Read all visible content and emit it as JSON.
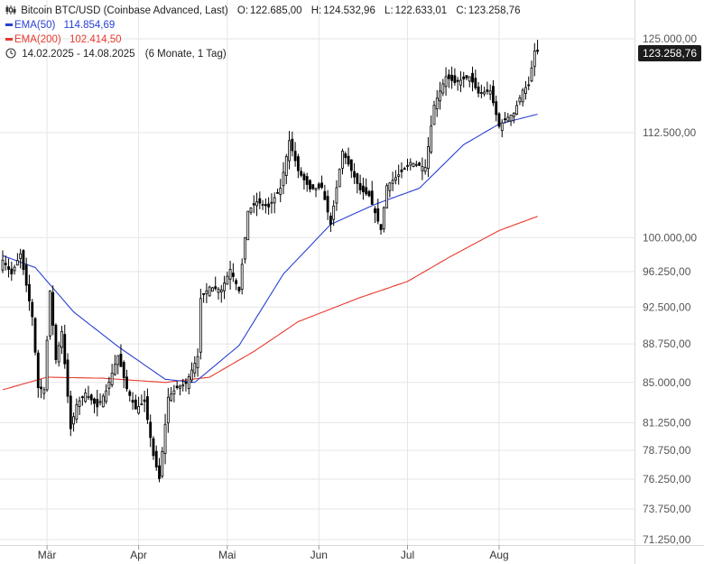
{
  "header": {
    "title": "Bitcoin BTC/USD (Coinbase Advanced, Last)",
    "open_label": "O:",
    "open": "122.685,00",
    "high_label": "H:",
    "high": "124.532,96",
    "low_label": "L:",
    "low": "122.633,01",
    "close_label": "C:",
    "close": "123.258,76",
    "ema50_label": "EMA(50)",
    "ema50_value": "114.854,69",
    "ema50_color": "#2940d3",
    "ema200_label": "EMA(200)",
    "ema200_value": "102.414,50",
    "ema200_color": "#e8392e",
    "range": "14.02.2025 - 14.08.2025",
    "period": "(6 Monate, 1 Tag)"
  },
  "last_price": "123.258,76",
  "chart_data": {
    "type": "candlestick",
    "y_axis": {
      "ticks": [
        125000,
        112500,
        100000,
        96250,
        92500,
        88750,
        85000,
        81250,
        78750,
        76250,
        73750,
        71250
      ],
      "tick_labels": [
        "125.000,00",
        "112.500,00",
        "100.000,00",
        "96.250,00",
        "92.500,00",
        "88.750,00",
        "85.000,00",
        "81.250,00",
        "78.750,00",
        "76.250,00",
        "73.750,00",
        "71.250,00"
      ],
      "scale": "log",
      "range": [
        70000,
        127000
      ]
    },
    "x_axis": {
      "start_date": "2025-02-14",
      "end_date": "2025-08-14",
      "month_ticks": [
        {
          "label": "Mär",
          "date": "2025-03-01"
        },
        {
          "label": "Apr",
          "date": "2025-04-01"
        },
        {
          "label": "Mai",
          "date": "2025-05-01"
        },
        {
          "label": "Jun",
          "date": "2025-06-01"
        },
        {
          "label": "Jul",
          "date": "2025-07-01"
        },
        {
          "label": "Aug",
          "date": "2025-08-01"
        }
      ]
    },
    "grid": true,
    "close_anchors": [
      [
        "2025-02-14",
        97500
      ],
      [
        "2025-02-17",
        96000
      ],
      [
        "2025-02-20",
        98200
      ],
      [
        "2025-02-24",
        91500
      ],
      [
        "2025-02-26",
        84500
      ],
      [
        "2025-02-28",
        84300
      ],
      [
        "2025-03-02",
        94200
      ],
      [
        "2025-03-04",
        87200
      ],
      [
        "2025-03-06",
        90000
      ],
      [
        "2025-03-09",
        80700
      ],
      [
        "2025-03-11",
        82900
      ],
      [
        "2025-03-14",
        84000
      ],
      [
        "2025-03-18",
        82700
      ],
      [
        "2025-03-21",
        84200
      ],
      [
        "2025-03-25",
        87600
      ],
      [
        "2025-03-28",
        84400
      ],
      [
        "2025-03-31",
        82500
      ],
      [
        "2025-04-03",
        83200
      ],
      [
        "2025-04-06",
        78300
      ],
      [
        "2025-04-08",
        76300
      ],
      [
        "2025-04-11",
        83600
      ],
      [
        "2025-04-14",
        84500
      ],
      [
        "2025-04-17",
        84900
      ],
      [
        "2025-04-21",
        87500
      ],
      [
        "2025-04-22",
        93400
      ],
      [
        "2025-04-25",
        94600
      ],
      [
        "2025-04-29",
        94300
      ],
      [
        "2025-05-02",
        96500
      ],
      [
        "2025-05-05",
        94200
      ],
      [
        "2025-05-08",
        103000
      ],
      [
        "2025-05-11",
        104100
      ],
      [
        "2025-05-15",
        103500
      ],
      [
        "2025-05-19",
        105700
      ],
      [
        "2025-05-22",
        111500
      ],
      [
        "2025-05-25",
        107800
      ],
      [
        "2025-05-29",
        105600
      ],
      [
        "2025-06-02",
        105800
      ],
      [
        "2025-06-05",
        101500
      ],
      [
        "2025-06-09",
        110200
      ],
      [
        "2025-06-11",
        108600
      ],
      [
        "2025-06-15",
        105500
      ],
      [
        "2025-06-18",
        104800
      ],
      [
        "2025-06-22",
        100900
      ],
      [
        "2025-06-24",
        106000
      ],
      [
        "2025-06-28",
        107300
      ],
      [
        "2025-07-02",
        108800
      ],
      [
        "2025-07-07",
        108200
      ],
      [
        "2025-07-10",
        116000
      ],
      [
        "2025-07-14",
        119800
      ],
      [
        "2025-07-17",
        119000
      ],
      [
        "2025-07-22",
        119800
      ],
      [
        "2025-07-25",
        117600
      ],
      [
        "2025-07-29",
        117900
      ],
      [
        "2025-08-01",
        113300
      ],
      [
        "2025-08-03",
        114200
      ],
      [
        "2025-08-06",
        115000
      ],
      [
        "2025-08-09",
        118000
      ],
      [
        "2025-08-11",
        118700
      ],
      [
        "2025-08-13",
        123300
      ],
      [
        "2025-08-14",
        123258.76
      ]
    ],
    "ema50": [
      [
        "2025-02-14",
        98000
      ],
      [
        "2025-02-25",
        96700
      ],
      [
        "2025-03-10",
        92000
      ],
      [
        "2025-03-25",
        88500
      ],
      [
        "2025-04-10",
        85300
      ],
      [
        "2025-04-20",
        85000
      ],
      [
        "2025-05-05",
        88600
      ],
      [
        "2025-05-20",
        96000
      ],
      [
        "2025-06-05",
        101500
      ],
      [
        "2025-06-20",
        103800
      ],
      [
        "2025-07-05",
        105700
      ],
      [
        "2025-07-20",
        111000
      ],
      [
        "2025-08-01",
        113600
      ],
      [
        "2025-08-14",
        114854.69
      ]
    ],
    "ema200": [
      [
        "2025-02-14",
        84300
      ],
      [
        "2025-03-01",
        85500
      ],
      [
        "2025-03-20",
        85400
      ],
      [
        "2025-04-10",
        85000
      ],
      [
        "2025-04-25",
        85500
      ],
      [
        "2025-05-10",
        88000
      ],
      [
        "2025-05-25",
        91000
      ],
      [
        "2025-06-15",
        93500
      ],
      [
        "2025-07-01",
        95200
      ],
      [
        "2025-07-15",
        97800
      ],
      [
        "2025-08-01",
        100800
      ],
      [
        "2025-08-14",
        102414.5
      ]
    ]
  }
}
